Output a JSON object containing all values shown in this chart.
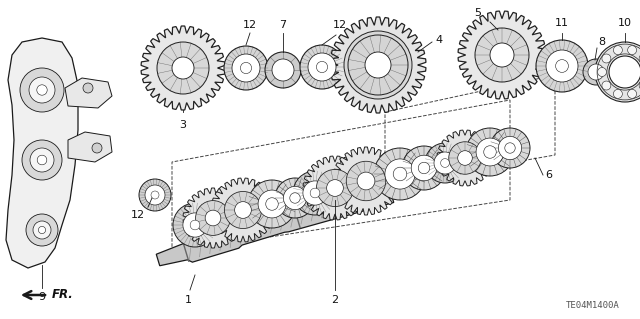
{
  "background_color": "#ffffff",
  "diagram_code": "TE04M1400A",
  "line_color": "#1a1a1a",
  "text_color": "#111111",
  "font_size_labels": 8,
  "font_size_code": 6.5,
  "parts": {
    "gear_fill": "#e0e0e0",
    "gear_edge": "#222222",
    "shaft_fill": "#cccccc",
    "sync_fill": "#d8d8d8",
    "bearing_fill": "#e8e8e8",
    "housing_fill": "#f2f2f2"
  }
}
